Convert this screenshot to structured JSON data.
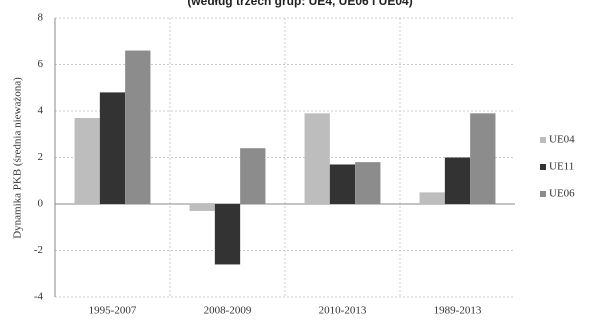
{
  "chart_data": {
    "type": "bar",
    "title": "(według trzech grup: UE4, UE06 i UE04)",
    "y_label": "Dynamika PKB (średnia nieważona)",
    "categories": [
      "1995-2007",
      "2008-2009",
      "2010-2013",
      "1989-2013"
    ],
    "series": [
      {
        "name": "UE04",
        "color": "#bdbdbd",
        "values": [
          3.7,
          -0.3,
          3.9,
          0.5
        ]
      },
      {
        "name": "UE11",
        "color": "#333333",
        "values": [
          4.8,
          -2.6,
          1.7,
          2.0
        ]
      },
      {
        "name": "UE06",
        "color": "#8c8c8c",
        "values": [
          6.6,
          2.4,
          1.8,
          3.9
        ]
      }
    ],
    "ylim": [
      -4,
      8
    ],
    "yticks": [
      -4,
      -2,
      0,
      2,
      4,
      6,
      8
    ],
    "grid": true,
    "legend": "right"
  }
}
